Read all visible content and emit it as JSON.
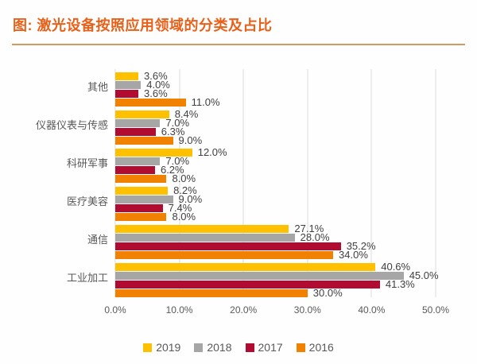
{
  "title": "图: 激光设备按照应用领域的分类及占比",
  "colors": {
    "title": "#e8611a",
    "title_rule": "#d49a5e",
    "value_label": "#3f3f3f",
    "axis_text": "#595959",
    "gridline": "#dcdcdc",
    "series_2019": "#ffc000",
    "series_2018": "#a6a6a6",
    "series_2017": "#b10b32",
    "series_2016": "#f18101"
  },
  "chart_data": {
    "type": "bar",
    "orientation": "horizontal",
    "title": "图: 激光设备按照应用领域的分类及占比",
    "categories": [
      "其他",
      "仪器仪表与传感",
      "科研军事",
      "医疗美容",
      "通信",
      "工业加工"
    ],
    "series": [
      {
        "name": "2019",
        "color": "#ffc000",
        "values": [
          3.6,
          8.4,
          12.0,
          8.2,
          27.1,
          40.6
        ],
        "labels": [
          "3.6%",
          "8.4%",
          "12.0%",
          "8.2%",
          "27.1%",
          "40.6%"
        ]
      },
      {
        "name": "2018",
        "color": "#a6a6a6",
        "values": [
          4.0,
          7.0,
          7.0,
          9.0,
          28.0,
          45.0
        ],
        "labels": [
          "4.0%",
          "7.0%",
          "7.0%",
          "9.0%",
          "28.0%",
          "45.0%"
        ]
      },
      {
        "name": "2017",
        "color": "#b10b32",
        "values": [
          3.6,
          6.3,
          6.2,
          7.4,
          35.2,
          41.3
        ],
        "labels": [
          "3.6%",
          "6.3%",
          "6.2%",
          "7.4%",
          "35.2%",
          "41.3%"
        ]
      },
      {
        "name": "2016",
        "color": "#f18101",
        "values": [
          11.0,
          9.0,
          8.0,
          8.0,
          34.0,
          30.0
        ],
        "labels": [
          "11.0%",
          "9.0%",
          "8.0%",
          "8.0%",
          "34.0%",
          "30.0%"
        ]
      }
    ],
    "xlim": [
      0,
      50
    ],
    "x_ticks": [
      "0.0%",
      "10.0%",
      "20.0%",
      "30.0%",
      "40.0%",
      "50.0%"
    ],
    "grid": true,
    "legend": [
      "2019",
      "2018",
      "2017",
      "2016"
    ],
    "legend_position": "bottom"
  }
}
